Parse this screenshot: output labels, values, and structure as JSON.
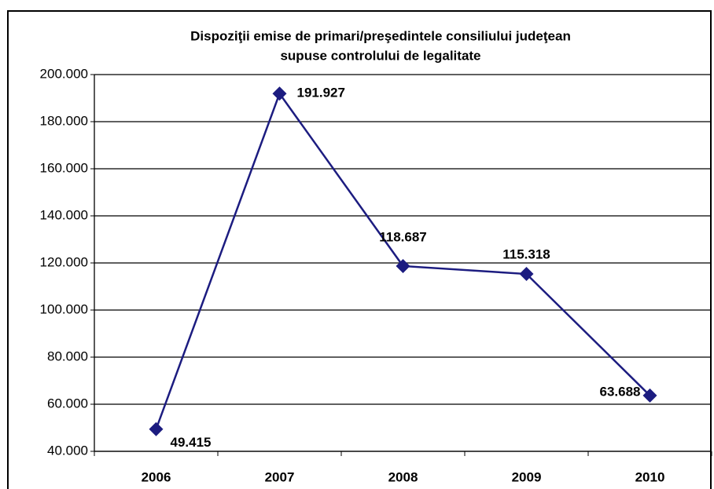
{
  "chart_data": {
    "type": "line",
    "title": [
      "Dispoziţii emise de primari/preşedintele consiliului judeţean",
      "supuse controlului de legalitate"
    ],
    "categories": [
      "2006",
      "2007",
      "2008",
      "2009",
      "2010"
    ],
    "series": [
      {
        "color": "#1c1c80",
        "values": [
          49415,
          191927,
          118687,
          115318,
          63688
        ],
        "value_labels": [
          "49.415",
          "191.927",
          "118.687",
          "115.318",
          "63.688"
        ]
      }
    ],
    "ylim": [
      40000,
      200000
    ],
    "yticks": [
      {
        "value": 40000,
        "label": "40.000"
      },
      {
        "value": 60000,
        "label": "60.000"
      },
      {
        "value": 80000,
        "label": "80.000"
      },
      {
        "value": 100000,
        "label": "100.000"
      },
      {
        "value": 120000,
        "label": "120.000"
      },
      {
        "value": 140000,
        "label": "140.000"
      },
      {
        "value": 160000,
        "label": "160.000"
      },
      {
        "value": 180000,
        "label": "180.000"
      },
      {
        "value": 200000,
        "label": "200.000"
      }
    ],
    "grid": true
  }
}
